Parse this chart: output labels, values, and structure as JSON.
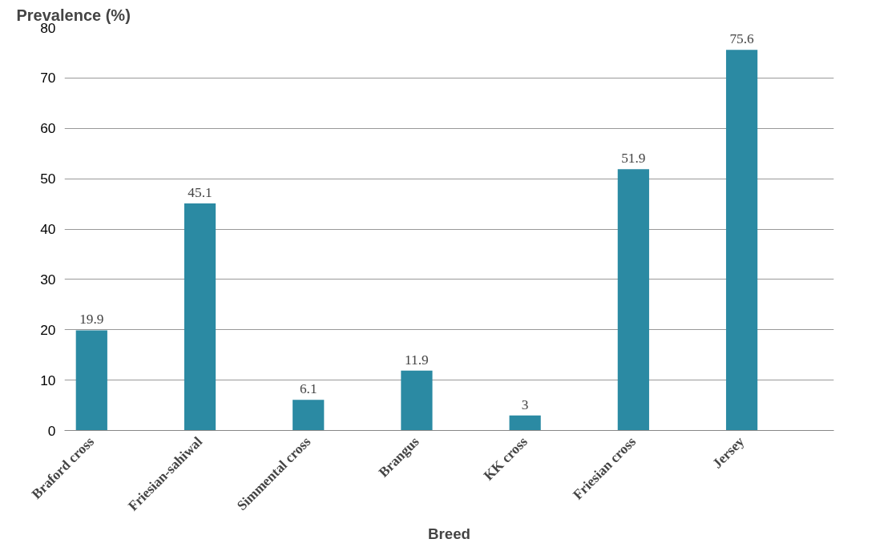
{
  "chart_data": {
    "type": "bar",
    "xlabel": "Breed",
    "ylabel": "Prevalence (%)",
    "categories": [
      "Braford cross",
      "Friesian-sahiwal",
      "Simmental cross",
      "Brangus",
      "KK cross",
      "Friesian cross",
      "Jersey"
    ],
    "values": [
      19.9,
      45.1,
      6.1,
      11.9,
      3,
      51.9,
      75.6
    ],
    "color": "#2b8aa3",
    "ylim": [
      0,
      80
    ],
    "yticks": [
      0,
      10,
      20,
      30,
      40,
      50,
      60,
      70,
      80
    ],
    "grid": "y",
    "data_labels": true
  }
}
